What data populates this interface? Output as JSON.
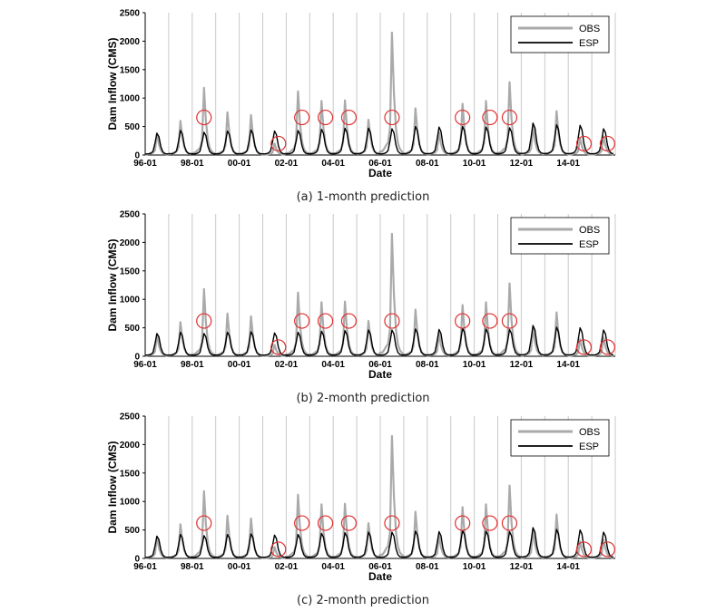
{
  "legend_labels": [
    "OBS",
    "ESP"
  ],
  "colors": {
    "obs": "#aaaaaa",
    "esp": "#000000",
    "circle": "#e03030",
    "grid": "#c8c8c8"
  },
  "chart_data": [
    {
      "type": "line",
      "caption": "(a) 1-month prediction",
      "xlabel": "Date",
      "ylabel": "Dam Inflow (CMS)",
      "ylim": [
        0,
        2500
      ],
      "yticks": [
        0,
        500,
        1000,
        1500,
        2000,
        2500
      ],
      "xlim": [
        "1996-01",
        "2015-12"
      ],
      "xtick_labels": [
        "96-01",
        "98-01",
        "00-01",
        "02-01",
        "04-01",
        "06-01",
        "08-01",
        "10-01",
        "12-01",
        "14-01"
      ],
      "grid": "vertical yearly gridlines",
      "legend": "top-right",
      "obs_annual_peaks": [
        {
          "date": "1996-07",
          "value": 380
        },
        {
          "date": "1997-07",
          "value": 600
        },
        {
          "date": "1998-07",
          "value": 1180
        },
        {
          "date": "1999-07",
          "value": 750
        },
        {
          "date": "2000-07",
          "value": 700
        },
        {
          "date": "2001-07",
          "value": 200
        },
        {
          "date": "2002-07",
          "value": 1120
        },
        {
          "date": "2003-07",
          "value": 950
        },
        {
          "date": "2004-07",
          "value": 960
        },
        {
          "date": "2005-07",
          "value": 620
        },
        {
          "date": "2006-07",
          "value": 2150
        },
        {
          "date": "2007-07",
          "value": 820
        },
        {
          "date": "2008-07",
          "value": 400
        },
        {
          "date": "2009-07",
          "value": 900
        },
        {
          "date": "2010-07",
          "value": 950
        },
        {
          "date": "2011-07",
          "value": 1280
        },
        {
          "date": "2012-07",
          "value": 500
        },
        {
          "date": "2013-07",
          "value": 770
        },
        {
          "date": "2014-07",
          "value": 300
        },
        {
          "date": "2015-07",
          "value": 330
        }
      ],
      "esp_annual_peaks": [
        {
          "date": "1996-07",
          "value": 380
        },
        {
          "date": "1997-07",
          "value": 430
        },
        {
          "date": "1998-07",
          "value": 400
        },
        {
          "date": "1999-07",
          "value": 420
        },
        {
          "date": "2000-07",
          "value": 440
        },
        {
          "date": "2001-07",
          "value": 420
        },
        {
          "date": "2002-07",
          "value": 430
        },
        {
          "date": "2003-07",
          "value": 450
        },
        {
          "date": "2004-07",
          "value": 470
        },
        {
          "date": "2005-07",
          "value": 470
        },
        {
          "date": "2006-07",
          "value": 460
        },
        {
          "date": "2007-07",
          "value": 500
        },
        {
          "date": "2008-07",
          "value": 490
        },
        {
          "date": "2009-07",
          "value": 500
        },
        {
          "date": "2010-07",
          "value": 490
        },
        {
          "date": "2011-07",
          "value": 480
        },
        {
          "date": "2012-07",
          "value": 560
        },
        {
          "date": "2013-07",
          "value": 530
        },
        {
          "date": "2014-07",
          "value": 520
        },
        {
          "date": "2015-07",
          "value": 460
        }
      ],
      "highlight_circles": [
        {
          "date": "1998-07",
          "value": 660
        },
        {
          "date": "2001-09",
          "value": 200
        },
        {
          "date": "2002-09",
          "value": 660
        },
        {
          "date": "2003-09",
          "value": 660
        },
        {
          "date": "2004-09",
          "value": 660
        },
        {
          "date": "2006-07",
          "value": 660
        },
        {
          "date": "2009-07",
          "value": 660
        },
        {
          "date": "2010-09",
          "value": 660
        },
        {
          "date": "2011-07",
          "value": 660
        },
        {
          "date": "2014-09",
          "value": 200
        },
        {
          "date": "2015-09",
          "value": 200
        }
      ]
    },
    {
      "type": "line",
      "caption": "(b) 2-month prediction",
      "xlabel": "Date",
      "ylabel": "Dam Inflow (CMS)",
      "ylim": [
        0,
        2500
      ],
      "yticks": [
        0,
        500,
        1000,
        1500,
        2000,
        2500
      ],
      "xlim": [
        "1996-01",
        "2015-12"
      ],
      "xtick_labels": [
        "96-01",
        "98-01",
        "00-01",
        "02-01",
        "04-01",
        "06-01",
        "08-01",
        "10-01",
        "12-01",
        "14-01"
      ],
      "grid": "vertical yearly gridlines",
      "legend": "top-right",
      "obs_annual_peaks": [
        {
          "date": "1996-07",
          "value": 380
        },
        {
          "date": "1997-07",
          "value": 600
        },
        {
          "date": "1998-07",
          "value": 1180
        },
        {
          "date": "1999-07",
          "value": 750
        },
        {
          "date": "2000-07",
          "value": 700
        },
        {
          "date": "2001-07",
          "value": 200
        },
        {
          "date": "2002-07",
          "value": 1120
        },
        {
          "date": "2003-07",
          "value": 950
        },
        {
          "date": "2004-07",
          "value": 960
        },
        {
          "date": "2005-07",
          "value": 620
        },
        {
          "date": "2006-07",
          "value": 2150
        },
        {
          "date": "2007-07",
          "value": 820
        },
        {
          "date": "2008-07",
          "value": 400
        },
        {
          "date": "2009-07",
          "value": 900
        },
        {
          "date": "2010-07",
          "value": 950
        },
        {
          "date": "2011-07",
          "value": 1280
        },
        {
          "date": "2012-07",
          "value": 500
        },
        {
          "date": "2013-07",
          "value": 770
        },
        {
          "date": "2014-07",
          "value": 300
        },
        {
          "date": "2015-07",
          "value": 330
        }
      ],
      "esp_annual_peaks": [
        {
          "date": "1996-07",
          "value": 400
        },
        {
          "date": "1997-07",
          "value": 420
        },
        {
          "date": "1998-07",
          "value": 400
        },
        {
          "date": "1999-07",
          "value": 420
        },
        {
          "date": "2000-07",
          "value": 430
        },
        {
          "date": "2001-07",
          "value": 410
        },
        {
          "date": "2002-07",
          "value": 420
        },
        {
          "date": "2003-07",
          "value": 440
        },
        {
          "date": "2004-07",
          "value": 450
        },
        {
          "date": "2005-07",
          "value": 460
        },
        {
          "date": "2006-07",
          "value": 460
        },
        {
          "date": "2007-07",
          "value": 480
        },
        {
          "date": "2008-07",
          "value": 470
        },
        {
          "date": "2009-07",
          "value": 490
        },
        {
          "date": "2010-07",
          "value": 480
        },
        {
          "date": "2011-07",
          "value": 470
        },
        {
          "date": "2012-07",
          "value": 540
        },
        {
          "date": "2013-07",
          "value": 510
        },
        {
          "date": "2014-07",
          "value": 500
        },
        {
          "date": "2015-07",
          "value": 460
        }
      ],
      "highlight_circles": [
        {
          "date": "1998-07",
          "value": 620
        },
        {
          "date": "2001-09",
          "value": 160
        },
        {
          "date": "2002-09",
          "value": 620
        },
        {
          "date": "2003-09",
          "value": 620
        },
        {
          "date": "2004-09",
          "value": 620
        },
        {
          "date": "2006-07",
          "value": 620
        },
        {
          "date": "2009-07",
          "value": 620
        },
        {
          "date": "2010-09",
          "value": 620
        },
        {
          "date": "2011-07",
          "value": 620
        },
        {
          "date": "2014-09",
          "value": 160
        },
        {
          "date": "2015-09",
          "value": 160
        }
      ]
    },
    {
      "type": "line",
      "caption": "(c) 2-month prediction",
      "xlabel": "Date",
      "ylabel": "Dam Inflow (CMS)",
      "ylim": [
        0,
        2500
      ],
      "yticks": [
        0,
        500,
        1000,
        1500,
        2000,
        2500
      ],
      "xlim": [
        "1996-01",
        "2015-12"
      ],
      "xtick_labels": [
        "96-01",
        "98-01",
        "00-01",
        "02-01",
        "04-01",
        "06-01",
        "08-01",
        "10-01",
        "12-01",
        "14-01"
      ],
      "grid": "vertical yearly gridlines",
      "legend": "top-right",
      "obs_annual_peaks": [
        {
          "date": "1996-07",
          "value": 380
        },
        {
          "date": "1997-07",
          "value": 600
        },
        {
          "date": "1998-07",
          "value": 1180
        },
        {
          "date": "1999-07",
          "value": 750
        },
        {
          "date": "2000-07",
          "value": 700
        },
        {
          "date": "2001-07",
          "value": 200
        },
        {
          "date": "2002-07",
          "value": 1120
        },
        {
          "date": "2003-07",
          "value": 950
        },
        {
          "date": "2004-07",
          "value": 960
        },
        {
          "date": "2005-07",
          "value": 620
        },
        {
          "date": "2006-07",
          "value": 2150
        },
        {
          "date": "2007-07",
          "value": 820
        },
        {
          "date": "2008-07",
          "value": 400
        },
        {
          "date": "2009-07",
          "value": 900
        },
        {
          "date": "2010-07",
          "value": 950
        },
        {
          "date": "2011-07",
          "value": 1280
        },
        {
          "date": "2012-07",
          "value": 500
        },
        {
          "date": "2013-07",
          "value": 770
        },
        {
          "date": "2014-07",
          "value": 300
        },
        {
          "date": "2015-07",
          "value": 330
        }
      ],
      "esp_annual_peaks": [
        {
          "date": "1996-07",
          "value": 390
        },
        {
          "date": "1997-07",
          "value": 420
        },
        {
          "date": "1998-07",
          "value": 400
        },
        {
          "date": "1999-07",
          "value": 420
        },
        {
          "date": "2000-07",
          "value": 430
        },
        {
          "date": "2001-07",
          "value": 410
        },
        {
          "date": "2002-07",
          "value": 420
        },
        {
          "date": "2003-07",
          "value": 440
        },
        {
          "date": "2004-07",
          "value": 450
        },
        {
          "date": "2005-07",
          "value": 460
        },
        {
          "date": "2006-07",
          "value": 460
        },
        {
          "date": "2007-07",
          "value": 480
        },
        {
          "date": "2008-07",
          "value": 470
        },
        {
          "date": "2009-07",
          "value": 490
        },
        {
          "date": "2010-07",
          "value": 480
        },
        {
          "date": "2011-07",
          "value": 470
        },
        {
          "date": "2012-07",
          "value": 540
        },
        {
          "date": "2013-07",
          "value": 510
        },
        {
          "date": "2014-07",
          "value": 500
        },
        {
          "date": "2015-07",
          "value": 460
        }
      ],
      "highlight_circles": [
        {
          "date": "1998-07",
          "value": 620
        },
        {
          "date": "2001-09",
          "value": 160
        },
        {
          "date": "2002-09",
          "value": 620
        },
        {
          "date": "2003-09",
          "value": 620
        },
        {
          "date": "2004-09",
          "value": 620
        },
        {
          "date": "2006-07",
          "value": 620
        },
        {
          "date": "2009-07",
          "value": 620
        },
        {
          "date": "2010-09",
          "value": 620
        },
        {
          "date": "2011-07",
          "value": 620
        },
        {
          "date": "2014-09",
          "value": 160
        },
        {
          "date": "2015-09",
          "value": 160
        }
      ]
    }
  ]
}
